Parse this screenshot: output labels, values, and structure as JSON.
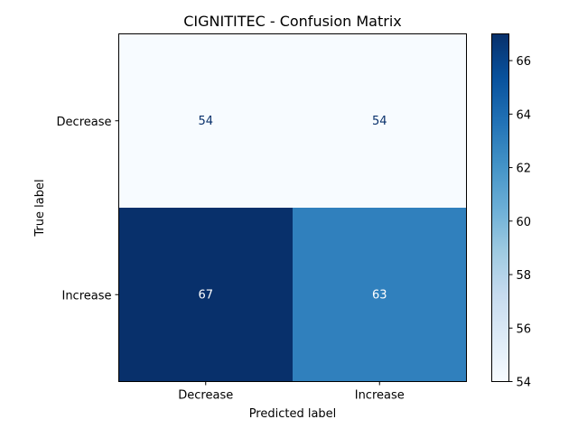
{
  "chart_data": {
    "type": "heatmap",
    "title": "CIGNITITEC - Confusion Matrix",
    "xlabel": "Predicted label",
    "ylabel": "True label",
    "x_categories": [
      "Decrease",
      "Increase"
    ],
    "y_categories": [
      "Decrease",
      "Increase"
    ],
    "values": [
      [
        54,
        54
      ],
      [
        67,
        63
      ]
    ],
    "colormap": "Blues",
    "colorbar": {
      "min": 54,
      "max": 67,
      "ticks": [
        54,
        56,
        58,
        60,
        62,
        64,
        66
      ]
    },
    "grid": false
  }
}
